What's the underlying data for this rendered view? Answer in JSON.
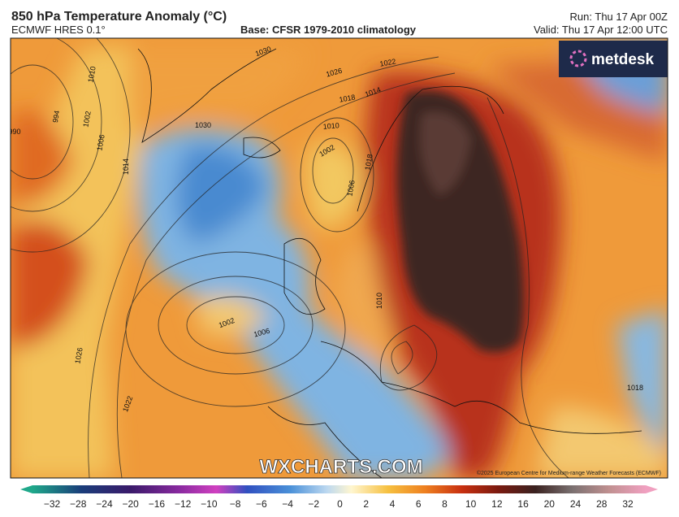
{
  "header": {
    "title": "850 hPa Temperature Anomaly (°C)",
    "model": "ECMWF HRES 0.1°",
    "base": "Base: CFSR 1979-2010 climatology",
    "run": "Run: Thu 17 Apr 00Z",
    "valid": "Valid: Thu 17 Apr 12:00 UTC"
  },
  "map": {
    "logo": "metdesk",
    "watermark": "WXCHARTS.COM",
    "copyright": "©2025 European Centre for Medium-range Weather Forecasts (ECMWF)",
    "isobar_labels": [
      "1030",
      "1022",
      "1026",
      "1018",
      "1014",
      "1010",
      "1002",
      "1006",
      "1002",
      "1006",
      "1026",
      "1022",
      "1010",
      "1030",
      "994",
      "1002",
      "1006",
      "1010",
      "1018",
      "1014",
      "990",
      "1018"
    ]
  },
  "colorbar": {
    "ticks": [
      "−32",
      "−28",
      "−24",
      "−20",
      "−16",
      "−12",
      "−10",
      "−8",
      "−6",
      "−4",
      "−2",
      "0",
      "2",
      "4",
      "6",
      "8",
      "10",
      "12",
      "16",
      "20",
      "24",
      "28",
      "32"
    ]
  }
}
